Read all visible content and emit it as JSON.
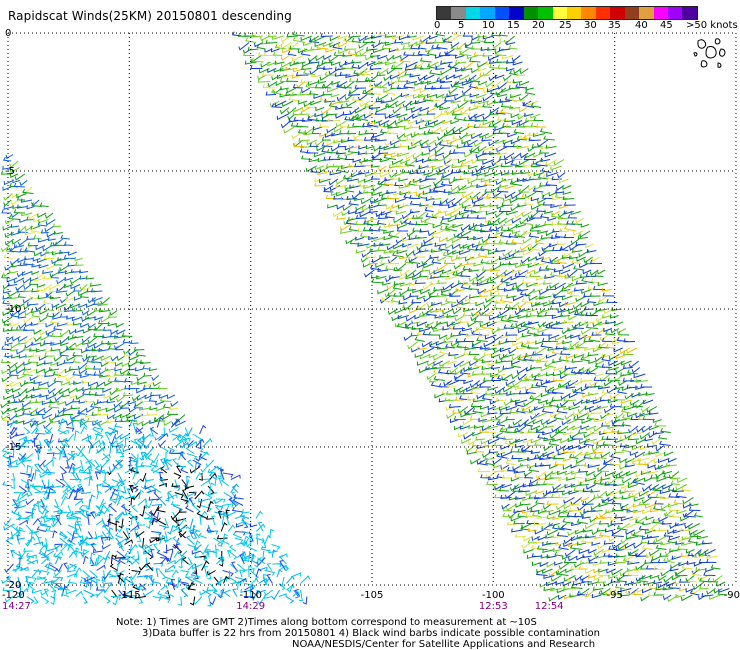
{
  "title": "Rapidscat Winds(25KM) 20150801 descending",
  "colorbar": {
    "colors": [
      "#3a3a3a",
      "#8a8a8a",
      "#00d8e8",
      "#00a8ff",
      "#0050ff",
      "#0000c8",
      "#009000",
      "#00c000",
      "#ffff40",
      "#ffd000",
      "#ff8800",
      "#ff3000",
      "#d00000",
      "#904020",
      "#e0a040",
      "#ff00ff",
      "#a000ff",
      "#5000a0"
    ],
    "labels": [
      "0",
      "5",
      "10",
      "15",
      "20",
      "25",
      "30",
      "35",
      "40",
      "45",
      ">50 knots"
    ]
  },
  "map": {
    "lon_range": [
      -120,
      -90
    ],
    "lat_range": [
      0,
      -20
    ],
    "x_ticks": [
      {
        "value": -120,
        "label": "-120"
      },
      {
        "value": -115,
        "label": "-115"
      },
      {
        "value": -110,
        "label": "-110"
      },
      {
        "value": -105,
        "label": "-105"
      },
      {
        "value": -100,
        "label": "-100"
      },
      {
        "value": -95,
        "label": "-95"
      },
      {
        "value": -90,
        "label": "-90"
      }
    ],
    "y_ticks": [
      {
        "value": 0,
        "label": "0"
      },
      {
        "value": -5,
        "label": "-5"
      },
      {
        "value": -10,
        "label": "-10"
      },
      {
        "value": -15,
        "label": "-15"
      },
      {
        "value": -20,
        "label": "-20"
      }
    ],
    "pass_times": [
      {
        "lon": -120,
        "label": "14:27"
      },
      {
        "lon": -110,
        "label": "14:29"
      },
      {
        "lon": -100,
        "label": "12:53"
      },
      {
        "lon": -97.7,
        "label": "12:54"
      }
    ]
  },
  "notes": {
    "line1": "Note: 1) Times are GMT 2)Times along bottom correspond to measurement at ~10S",
    "line2": "3)Data buffer is 22 hrs from 20150801 4) Black wind barbs indicate possible contamination",
    "line3": "NOAA/NESDIS/Center for Satellite Applications and Research"
  }
}
